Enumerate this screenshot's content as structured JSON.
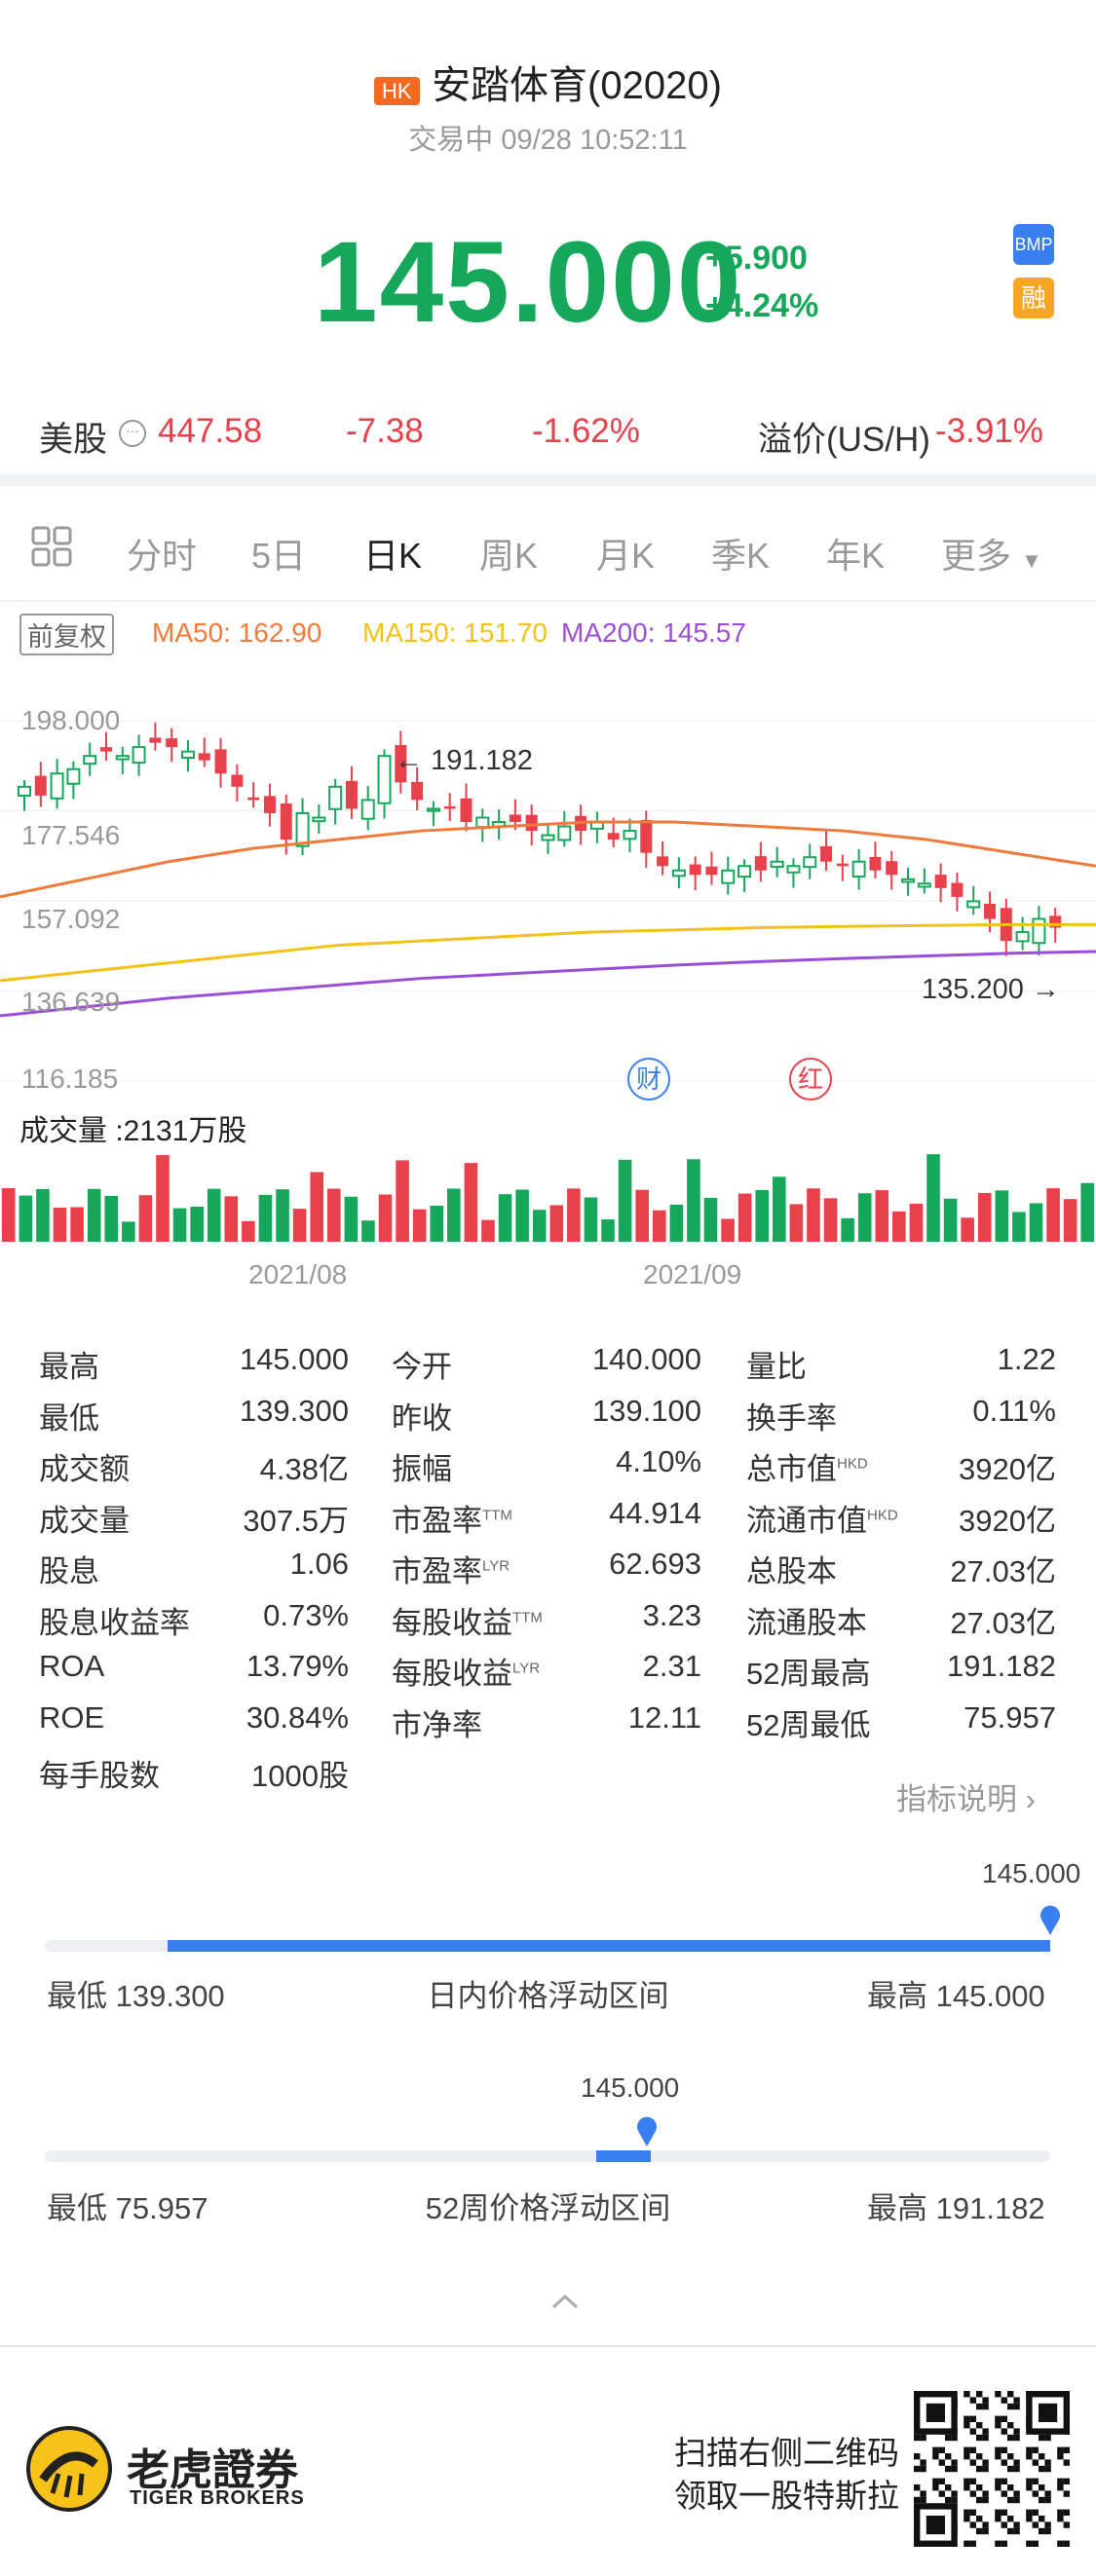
{
  "header": {
    "market_badge": "HK",
    "title": "安踏体育(02020)",
    "status": "交易中 09/28 10:52:11"
  },
  "quote": {
    "price": "145.000",
    "change": "+5.900",
    "change_pct": "+4.24%",
    "badge_bmp": "BMP",
    "badge_margin": "融"
  },
  "us_row": {
    "label": "美股",
    "price": "447.58",
    "change": "-7.38",
    "change_pct": "-1.62%",
    "premium_label": "溢价(US/H)",
    "premium_value": "-3.91%"
  },
  "tabs": [
    "分时",
    "5日",
    "日K",
    "周K",
    "月K",
    "季K",
    "年K",
    "更多"
  ],
  "active_tab": "日K",
  "chart_controls": {
    "adjust_label": "前复权",
    "ma50": "MA50: 162.90",
    "ma150": "MA150: 151.70",
    "ma200": "MA200: 145.57"
  },
  "chart_data": {
    "type": "candlestick",
    "y_ticks": [
      "198.000",
      "177.546",
      "157.092",
      "136.639",
      "116.185"
    ],
    "ylim": [
      116.185,
      198.0
    ],
    "x_ticks": [
      "2021/08",
      "2021/09"
    ],
    "high_label": "191.182",
    "low_label": "135.200",
    "event_markers": [
      "财",
      "红"
    ],
    "volume_label": "成交量 :2131万股",
    "colors": {
      "up": "#16a85a",
      "down": "#e8414b",
      "ma50": "#f07a3a",
      "ma150": "#f2c21b",
      "ma200": "#9b4fd8"
    }
  },
  "stats": [
    [
      {
        "label": "最高",
        "value": "145.000"
      },
      {
        "label": "今开",
        "value": "140.000"
      },
      {
        "label": "量比",
        "value": "1.22"
      }
    ],
    [
      {
        "label": "最低",
        "value": "139.300"
      },
      {
        "label": "昨收",
        "value": "139.100"
      },
      {
        "label": "换手率",
        "value": "0.11%"
      }
    ],
    [
      {
        "label": "成交额",
        "value": "4.38亿"
      },
      {
        "label": "振幅",
        "value": "4.10%"
      },
      {
        "label": "总市值",
        "sup": "HKD",
        "value": "3920亿"
      }
    ],
    [
      {
        "label": "成交量",
        "value": "307.5万"
      },
      {
        "label": "市盈率",
        "sup": "TTM",
        "value": "44.914"
      },
      {
        "label": "流通市值",
        "sup": "HKD",
        "value": "3920亿"
      }
    ],
    [
      {
        "label": "股息",
        "value": "1.06"
      },
      {
        "label": "市盈率",
        "sup": "LYR",
        "value": "62.693"
      },
      {
        "label": "总股本",
        "value": "27.03亿"
      }
    ],
    [
      {
        "label": "股息收益率",
        "value": "0.73%"
      },
      {
        "label": "每股收益",
        "sup": "TTM",
        "value": "3.23"
      },
      {
        "label": "流通股本",
        "value": "27.03亿"
      }
    ],
    [
      {
        "label": "ROA",
        "value": "13.79%"
      },
      {
        "label": "每股收益",
        "sup": "LYR",
        "value": "2.31"
      },
      {
        "label": "52周最高",
        "value": "191.182"
      }
    ],
    [
      {
        "label": "ROE",
        "value": "30.84%"
      },
      {
        "label": "市净率",
        "value": "12.11"
      },
      {
        "label": "52周最低",
        "value": "75.957"
      }
    ],
    [
      {
        "label": "每手股数",
        "value": "1000股"
      }
    ]
  ],
  "indicator_link": "指标说明",
  "intraday_range": {
    "current": "145.000",
    "low": "最低 139.300",
    "title": "日内价格浮动区间",
    "high": "最高 145.000",
    "position": 1.0
  },
  "week52_range": {
    "current": "145.000",
    "low": "最低 75.957",
    "title": "52周价格浮动区间",
    "high": "最高 191.182",
    "position": 0.6
  },
  "footer": {
    "brand_cn": "老虎證券",
    "brand_en": "TIGER BROKERS",
    "promo_line1": "扫描右侧二维码",
    "promo_line2": "领取一股特斯拉"
  }
}
